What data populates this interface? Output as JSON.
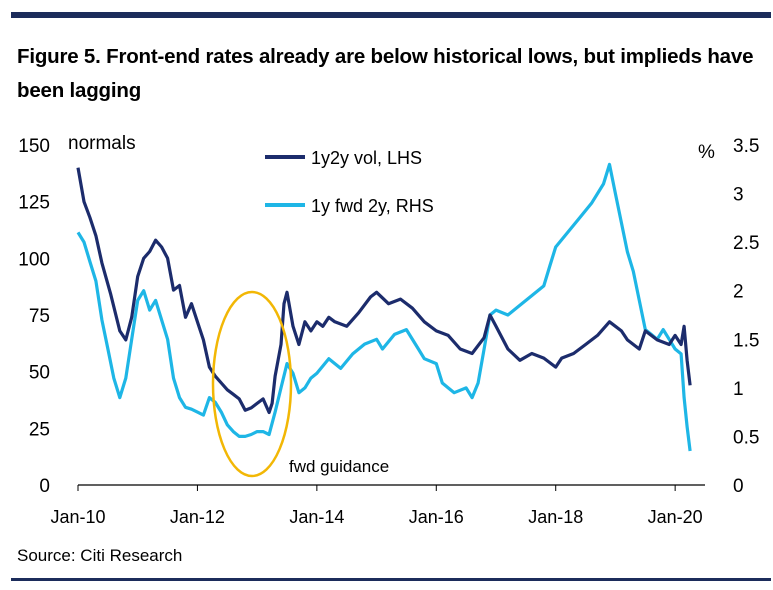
{
  "title": "Figure 5. Front-end rates already are below historical lows, but implieds have been lagging",
  "source": "Source: Citi Research",
  "chart_data": {
    "type": "line",
    "left_axis": {
      "label": "normals",
      "range": [
        0,
        150
      ],
      "ticks": [
        0,
        25,
        50,
        75,
        100,
        125,
        150
      ]
    },
    "right_axis": {
      "label": "%",
      "range": [
        0,
        3.5
      ],
      "ticks": [
        0,
        0.5,
        1,
        1.5,
        2,
        2.5,
        3,
        3.5
      ],
      "tick_labels": [
        "0",
        "0.5",
        "1",
        "1.5",
        "2",
        "2.5",
        "3",
        "3.5"
      ]
    },
    "x_axis": {
      "range": [
        2010.0,
        2020.5
      ],
      "ticks": [
        2010,
        2012,
        2014,
        2016,
        2018,
        2020
      ],
      "tick_labels": [
        "Jan-10",
        "Jan-12",
        "Jan-14",
        "Jan-16",
        "Jan-18",
        "Jan-20"
      ]
    },
    "series": [
      {
        "name": "1y2y vol, LHS",
        "axis": "left",
        "color": "#1c2c6c",
        "points": [
          [
            2010.0,
            140
          ],
          [
            2010.1,
            125
          ],
          [
            2010.2,
            118
          ],
          [
            2010.3,
            110
          ],
          [
            2010.4,
            98
          ],
          [
            2010.55,
            84
          ],
          [
            2010.7,
            68
          ],
          [
            2010.8,
            64
          ],
          [
            2010.9,
            74
          ],
          [
            2011.0,
            92
          ],
          [
            2011.1,
            100
          ],
          [
            2011.2,
            103
          ],
          [
            2011.3,
            108
          ],
          [
            2011.4,
            105
          ],
          [
            2011.5,
            100
          ],
          [
            2011.6,
            86
          ],
          [
            2011.7,
            88
          ],
          [
            2011.8,
            74
          ],
          [
            2011.9,
            80
          ],
          [
            2012.0,
            72
          ],
          [
            2012.1,
            64
          ],
          [
            2012.2,
            52
          ],
          [
            2012.3,
            48
          ],
          [
            2012.4,
            45
          ],
          [
            2012.5,
            42
          ],
          [
            2012.6,
            40
          ],
          [
            2012.7,
            38
          ],
          [
            2012.8,
            33
          ],
          [
            2012.9,
            34
          ],
          [
            2013.0,
            36
          ],
          [
            2013.1,
            38
          ],
          [
            2013.2,
            32
          ],
          [
            2013.25,
            36
          ],
          [
            2013.3,
            48
          ],
          [
            2013.4,
            62
          ],
          [
            2013.45,
            80
          ],
          [
            2013.5,
            85
          ],
          [
            2013.6,
            70
          ],
          [
            2013.7,
            62
          ],
          [
            2013.8,
            72
          ],
          [
            2013.9,
            68
          ],
          [
            2014.0,
            72
          ],
          [
            2014.1,
            70
          ],
          [
            2014.2,
            74
          ],
          [
            2014.3,
            72
          ],
          [
            2014.5,
            70
          ],
          [
            2014.7,
            76
          ],
          [
            2014.9,
            83
          ],
          [
            2015.0,
            85
          ],
          [
            2015.2,
            80
          ],
          [
            2015.4,
            82
          ],
          [
            2015.6,
            78
          ],
          [
            2015.8,
            72
          ],
          [
            2016.0,
            68
          ],
          [
            2016.2,
            66
          ],
          [
            2016.4,
            60
          ],
          [
            2016.6,
            58
          ],
          [
            2016.8,
            65
          ],
          [
            2016.9,
            75
          ],
          [
            2017.0,
            70
          ],
          [
            2017.2,
            60
          ],
          [
            2017.4,
            55
          ],
          [
            2017.6,
            58
          ],
          [
            2017.8,
            56
          ],
          [
            2018.0,
            52
          ],
          [
            2018.1,
            56
          ],
          [
            2018.3,
            58
          ],
          [
            2018.5,
            62
          ],
          [
            2018.7,
            66
          ],
          [
            2018.9,
            72
          ],
          [
            2019.0,
            70
          ],
          [
            2019.1,
            68
          ],
          [
            2019.2,
            64
          ],
          [
            2019.4,
            60
          ],
          [
            2019.5,
            68
          ],
          [
            2019.7,
            64
          ],
          [
            2019.9,
            62
          ],
          [
            2020.0,
            66
          ],
          [
            2020.1,
            62
          ],
          [
            2020.15,
            70
          ],
          [
            2020.2,
            55
          ],
          [
            2020.25,
            44
          ]
        ]
      },
      {
        "name": "1y fwd 2y, RHS",
        "axis": "right",
        "color": "#1eb6e6",
        "points": [
          [
            2010.0,
            2.6
          ],
          [
            2010.1,
            2.5
          ],
          [
            2010.2,
            2.3
          ],
          [
            2010.3,
            2.1
          ],
          [
            2010.4,
            1.7
          ],
          [
            2010.5,
            1.4
          ],
          [
            2010.6,
            1.1
          ],
          [
            2010.7,
            0.9
          ],
          [
            2010.8,
            1.1
          ],
          [
            2010.9,
            1.5
          ],
          [
            2011.0,
            1.9
          ],
          [
            2011.1,
            2.0
          ],
          [
            2011.2,
            1.8
          ],
          [
            2011.3,
            1.9
          ],
          [
            2011.4,
            1.7
          ],
          [
            2011.5,
            1.5
          ],
          [
            2011.6,
            1.1
          ],
          [
            2011.7,
            0.9
          ],
          [
            2011.8,
            0.8
          ],
          [
            2011.9,
            0.78
          ],
          [
            2012.0,
            0.75
          ],
          [
            2012.1,
            0.72
          ],
          [
            2012.2,
            0.9
          ],
          [
            2012.3,
            0.85
          ],
          [
            2012.4,
            0.75
          ],
          [
            2012.5,
            0.62
          ],
          [
            2012.6,
            0.55
          ],
          [
            2012.7,
            0.5
          ],
          [
            2012.8,
            0.5
          ],
          [
            2012.9,
            0.52
          ],
          [
            2013.0,
            0.55
          ],
          [
            2013.1,
            0.55
          ],
          [
            2013.2,
            0.52
          ],
          [
            2013.3,
            0.75
          ],
          [
            2013.4,
            1.0
          ],
          [
            2013.5,
            1.25
          ],
          [
            2013.6,
            1.15
          ],
          [
            2013.7,
            0.95
          ],
          [
            2013.8,
            1.0
          ],
          [
            2013.9,
            1.1
          ],
          [
            2014.0,
            1.15
          ],
          [
            2014.2,
            1.3
          ],
          [
            2014.4,
            1.2
          ],
          [
            2014.6,
            1.35
          ],
          [
            2014.8,
            1.45
          ],
          [
            2015.0,
            1.5
          ],
          [
            2015.1,
            1.4
          ],
          [
            2015.3,
            1.55
          ],
          [
            2015.5,
            1.6
          ],
          [
            2015.7,
            1.4
          ],
          [
            2015.8,
            1.3
          ],
          [
            2016.0,
            1.25
          ],
          [
            2016.1,
            1.05
          ],
          [
            2016.2,
            1.0
          ],
          [
            2016.3,
            0.95
          ],
          [
            2016.5,
            1.0
          ],
          [
            2016.6,
            0.9
          ],
          [
            2016.7,
            1.05
          ],
          [
            2016.8,
            1.4
          ],
          [
            2016.9,
            1.75
          ],
          [
            2017.0,
            1.8
          ],
          [
            2017.2,
            1.75
          ],
          [
            2017.4,
            1.85
          ],
          [
            2017.6,
            1.95
          ],
          [
            2017.8,
            2.05
          ],
          [
            2017.9,
            2.25
          ],
          [
            2018.0,
            2.45
          ],
          [
            2018.2,
            2.6
          ],
          [
            2018.4,
            2.75
          ],
          [
            2018.6,
            2.9
          ],
          [
            2018.8,
            3.1
          ],
          [
            2018.9,
            3.3
          ],
          [
            2019.0,
            3.0
          ],
          [
            2019.1,
            2.7
          ],
          [
            2019.2,
            2.4
          ],
          [
            2019.3,
            2.2
          ],
          [
            2019.4,
            1.9
          ],
          [
            2019.5,
            1.6
          ],
          [
            2019.6,
            1.55
          ],
          [
            2019.7,
            1.5
          ],
          [
            2019.8,
            1.6
          ],
          [
            2019.9,
            1.5
          ],
          [
            2020.0,
            1.4
          ],
          [
            2020.1,
            1.35
          ],
          [
            2020.15,
            0.9
          ],
          [
            2020.2,
            0.6
          ],
          [
            2020.25,
            0.35
          ]
        ]
      }
    ],
    "annotations": [
      "fwd guidance"
    ],
    "legend_position": "top-center",
    "grid": false
  }
}
